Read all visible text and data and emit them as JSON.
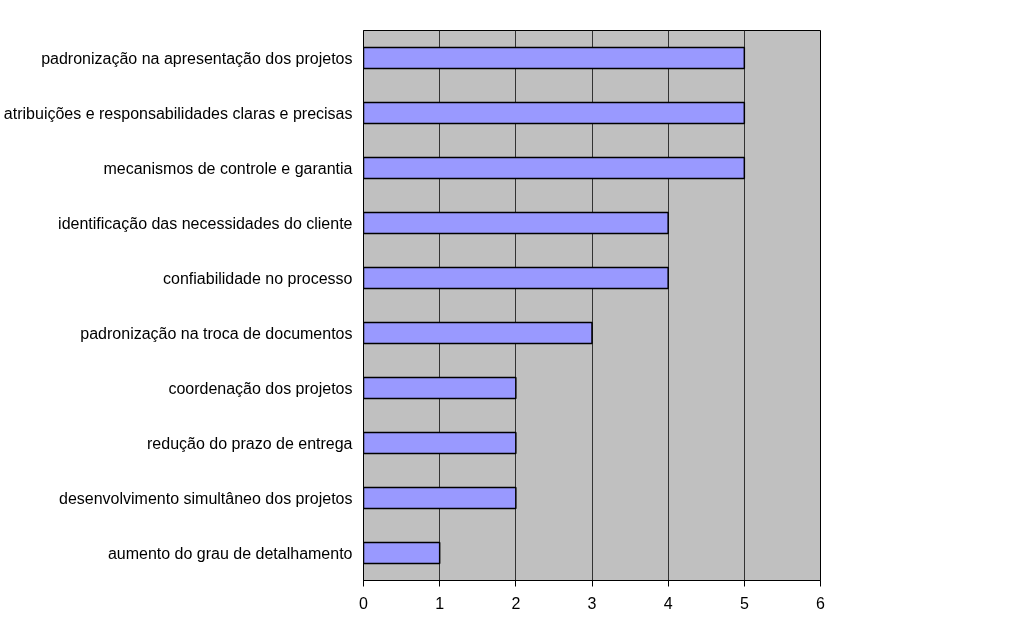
{
  "chart_data": {
    "type": "bar",
    "orientation": "horizontal",
    "categories": [
      "padronização na apresentação dos projetos",
      "atribuições e responsabilidades claras e precisas",
      "mecanismos de controle e garantia",
      "identificação das necessidades do cliente",
      "confiabilidade no processo",
      "padronização na troca de documentos",
      "coordenação dos projetos",
      "redução do prazo de entrega",
      "desenvolvimento simultâneo dos projetos",
      "aumento do grau de detalhamento"
    ],
    "values": [
      5,
      5,
      5,
      4,
      4,
      3,
      2,
      2,
      2,
      1
    ],
    "color": "#9999ff",
    "xlim": [
      0,
      6
    ],
    "xticks": [
      0,
      1,
      2,
      3,
      4,
      5,
      6
    ],
    "grid": "x"
  }
}
